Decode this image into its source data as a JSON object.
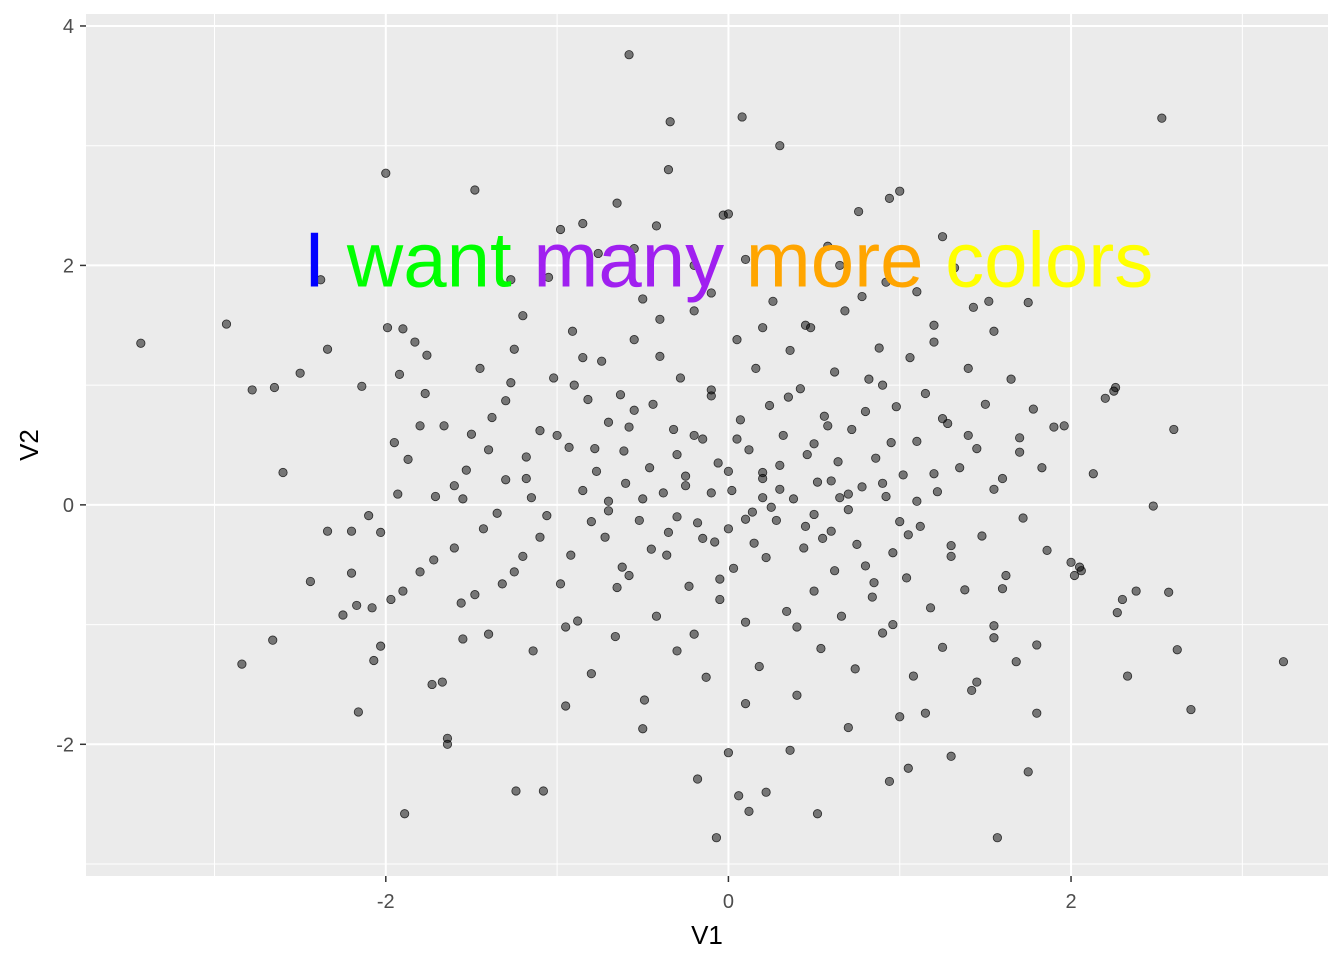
{
  "chart_data": {
    "type": "scatter",
    "title": "",
    "xlabel": "V1",
    "ylabel": "V2",
    "xlim": [
      -3.75,
      3.5
    ],
    "ylim": [
      -3.1,
      4.1
    ],
    "x_ticks": [
      -2,
      0,
      2
    ],
    "x_tick_labels": [
      "-2",
      "0",
      "2"
    ],
    "y_ticks": [
      -2,
      0,
      2,
      4
    ],
    "y_tick_labels": [
      "-2",
      "0",
      "2",
      "4"
    ],
    "grid": true,
    "legend": "none",
    "point_color": "#000000",
    "point_alpha": 0.5,
    "panel_background": "#ebebeb",
    "annotation": {
      "x": 0,
      "y": 2,
      "words": [
        {
          "text": "I",
          "color": "#0000ff"
        },
        {
          "text": "want",
          "color": "#00ff00"
        },
        {
          "text": "many",
          "color": "#a020f0"
        },
        {
          "text": "more",
          "color": "#ffa500"
        },
        {
          "text": "colors",
          "color": "#ffff00"
        }
      ]
    },
    "points": [
      [
        -3.43,
        1.35
      ],
      [
        -2.93,
        1.51
      ],
      [
        -2.84,
        -1.33
      ],
      [
        -2.78,
        0.96
      ],
      [
        -2.65,
        0.98
      ],
      [
        -2.6,
        0.27
      ],
      [
        -2.66,
        -1.13
      ],
      [
        -2.5,
        1.1
      ],
      [
        -2.44,
        -0.64
      ],
      [
        -2.34,
        1.3
      ],
      [
        -2.38,
        1.88
      ],
      [
        -2.34,
        -0.22
      ],
      [
        -2.25,
        -0.92
      ],
      [
        -2.2,
        -0.57
      ],
      [
        -2.17,
        -0.84
      ],
      [
        -2.14,
        0.99
      ],
      [
        -2.16,
        -1.73
      ],
      [
        -2.1,
        -0.09
      ],
      [
        -2.08,
        -0.86
      ],
      [
        -2.07,
        -1.3
      ],
      [
        -2.03,
        -1.18
      ],
      [
        -2.03,
        -0.23
      ],
      [
        -2.0,
        2.77
      ],
      [
        -1.99,
        1.48
      ],
      [
        -1.97,
        -0.79
      ],
      [
        -1.93,
        0.09
      ],
      [
        -1.92,
        1.09
      ],
      [
        -1.9,
        1.47
      ],
      [
        -1.87,
        0.38
      ],
      [
        -1.89,
        -2.58
      ],
      [
        -1.83,
        1.36
      ],
      [
        -1.8,
        0.66
      ],
      [
        -1.8,
        -0.56
      ],
      [
        -1.76,
        1.25
      ],
      [
        -1.73,
        -1.5
      ],
      [
        -1.71,
        0.07
      ],
      [
        -1.67,
        -1.48
      ],
      [
        -1.66,
        0.66
      ],
      [
        -1.6,
        -0.36
      ],
      [
        -1.55,
        0.05
      ],
      [
        -1.53,
        0.29
      ],
      [
        -1.64,
        -1.95
      ],
      [
        -1.64,
        -2.0
      ],
      [
        -1.5,
        0.59
      ],
      [
        -1.48,
        -0.75
      ],
      [
        -1.43,
        -0.2
      ],
      [
        -1.4,
        0.46
      ],
      [
        -1.38,
        0.73
      ],
      [
        -1.32,
        -0.66
      ],
      [
        -1.3,
        0.21
      ],
      [
        -1.27,
        1.02
      ],
      [
        -1.25,
        1.3
      ],
      [
        -1.2,
        -0.43
      ],
      [
        -1.18,
        0.4
      ],
      [
        -1.14,
        -1.22
      ],
      [
        -1.1,
        0.62
      ],
      [
        -1.06,
        -0.09
      ],
      [
        -1.02,
        1.06
      ],
      [
        -0.98,
        -0.66
      ],
      [
        -0.93,
        0.48
      ],
      [
        -0.91,
        1.45
      ],
      [
        -0.88,
        -0.97
      ],
      [
        -0.85,
        0.12
      ],
      [
        -0.82,
        0.88
      ],
      [
        -0.8,
        -1.41
      ],
      [
        -0.77,
        0.28
      ],
      [
        -0.74,
        1.2
      ],
      [
        -0.72,
        -0.27
      ],
      [
        -0.7,
        0.69
      ],
      [
        -0.66,
        -1.1
      ],
      [
        -0.63,
        0.92
      ],
      [
        -0.61,
        0.45
      ],
      [
        -0.58,
        -0.59
      ],
      [
        -0.55,
        1.38
      ],
      [
        -0.52,
        -0.13
      ],
      [
        -0.49,
        -1.63
      ],
      [
        -0.46,
        0.31
      ],
      [
        -0.44,
        0.84
      ],
      [
        -0.42,
        -0.93
      ],
      [
        -0.4,
        1.55
      ],
      [
        -0.38,
        0.1
      ],
      [
        -0.36,
        -0.42
      ],
      [
        -0.34,
        3.2
      ],
      [
        -0.35,
        2.8
      ],
      [
        -0.32,
        0.63
      ],
      [
        -0.3,
        -1.22
      ],
      [
        -0.28,
        1.06
      ],
      [
        -0.25,
        0.24
      ],
      [
        -0.23,
        -0.68
      ],
      [
        -0.2,
        1.62
      ],
      [
        -0.18,
        -0.15
      ],
      [
        -0.15,
        0.55
      ],
      [
        -0.13,
        -1.44
      ],
      [
        -0.1,
        0.96
      ],
      [
        -0.08,
        -0.31
      ],
      [
        -0.06,
        0.35
      ],
      [
        -0.05,
        -0.79
      ],
      [
        -0.03,
        2.42
      ],
      [
        0.0,
        2.43
      ],
      [
        0.02,
        0.12
      ],
      [
        0.03,
        -0.53
      ],
      [
        0.05,
        1.38
      ],
      [
        0.07,
        0.71
      ],
      [
        0.08,
        3.24
      ],
      [
        0.1,
        -0.98
      ],
      [
        0.12,
        0.46
      ],
      [
        0.14,
        -0.06
      ],
      [
        0.16,
        1.14
      ],
      [
        0.18,
        -1.35
      ],
      [
        0.2,
        0.27
      ],
      [
        0.22,
        -0.44
      ],
      [
        0.24,
        0.83
      ],
      [
        0.26,
        1.7
      ],
      [
        0.28,
        -0.13
      ],
      [
        0.3,
        3.0
      ],
      [
        0.32,
        0.58
      ],
      [
        0.34,
        -0.89
      ],
      [
        0.36,
        1.29
      ],
      [
        0.38,
        0.05
      ],
      [
        0.4,
        -1.59
      ],
      [
        0.42,
        0.97
      ],
      [
        0.44,
        -0.36
      ],
      [
        0.46,
        0.42
      ],
      [
        0.48,
        1.48
      ],
      [
        0.5,
        -0.72
      ],
      [
        0.52,
        0.19
      ],
      [
        0.54,
        -1.2
      ],
      [
        0.56,
        0.74
      ],
      [
        0.58,
        2.16
      ],
      [
        0.6,
        -0.22
      ],
      [
        0.62,
        1.11
      ],
      [
        0.64,
        0.36
      ],
      [
        0.66,
        -0.93
      ],
      [
        0.68,
        1.62
      ],
      [
        0.7,
        -0.04
      ],
      [
        0.72,
        0.63
      ],
      [
        0.74,
        -1.37
      ],
      [
        0.76,
        2.45
      ],
      [
        0.78,
        0.15
      ],
      [
        0.8,
        -0.51
      ],
      [
        0.82,
        1.05
      ],
      [
        0.84,
        -0.77
      ],
      [
        0.86,
        0.39
      ],
      [
        0.88,
        1.31
      ],
      [
        0.9,
        -1.07
      ],
      [
        0.92,
        0.07
      ],
      [
        0.94,
        2.56
      ],
      [
        0.96,
        -0.4
      ],
      [
        0.98,
        0.82
      ],
      [
        1.0,
        2.62
      ],
      [
        1.0,
        -1.77
      ],
      [
        1.02,
        0.25
      ],
      [
        1.04,
        -0.61
      ],
      [
        1.06,
        1.23
      ],
      [
        1.08,
        -1.43
      ],
      [
        1.1,
        0.53
      ],
      [
        1.12,
        -0.18
      ],
      [
        1.15,
        0.93
      ],
      [
        1.18,
        -0.86
      ],
      [
        1.2,
        1.36
      ],
      [
        1.22,
        0.11
      ],
      [
        1.25,
        -1.19
      ],
      [
        1.28,
        0.68
      ],
      [
        1.3,
        -0.43
      ],
      [
        1.32,
        1.98
      ],
      [
        1.35,
        0.31
      ],
      [
        1.38,
        -0.71
      ],
      [
        1.4,
        1.14
      ],
      [
        1.42,
        -1.55
      ],
      [
        1.45,
        0.47
      ],
      [
        1.48,
        -0.26
      ],
      [
        1.5,
        0.84
      ],
      [
        1.52,
        1.7
      ],
      [
        1.55,
        -1.01
      ],
      [
        1.57,
        -2.78
      ],
      [
        1.6,
        0.22
      ],
      [
        1.62,
        -0.59
      ],
      [
        1.65,
        1.05
      ],
      [
        1.68,
        -1.31
      ],
      [
        1.7,
        0.56
      ],
      [
        1.72,
        -0.11
      ],
      [
        1.75,
        1.69
      ],
      [
        1.75,
        -2.23
      ],
      [
        1.78,
        0.8
      ],
      [
        1.8,
        -1.17
      ],
      [
        1.83,
        0.31
      ],
      [
        1.86,
        -0.38
      ],
      [
        1.9,
        0.65
      ],
      [
        1.96,
        0.66
      ],
      [
        2.0,
        -0.48
      ],
      [
        2.02,
        -0.59
      ],
      [
        2.06,
        -0.55
      ],
      [
        2.13,
        0.26
      ],
      [
        2.2,
        0.89
      ],
      [
        2.25,
        0.95
      ],
      [
        2.26,
        0.98
      ],
      [
        2.27,
        -0.9
      ],
      [
        2.3,
        -0.79
      ],
      [
        2.33,
        -1.43
      ],
      [
        2.38,
        -0.72
      ],
      [
        2.48,
        -0.01
      ],
      [
        2.53,
        3.23
      ],
      [
        2.57,
        -0.73
      ],
      [
        2.6,
        0.63
      ],
      [
        2.62,
        -1.21
      ],
      [
        2.7,
        -1.71
      ],
      [
        3.24,
        -1.31
      ],
      [
        -0.58,
        3.76
      ],
      [
        -0.18,
        -2.29
      ],
      [
        -0.07,
        -2.78
      ],
      [
        0.0,
        -2.07
      ],
      [
        0.06,
        -2.43
      ],
      [
        0.12,
        -2.56
      ],
      [
        0.22,
        -2.4
      ],
      [
        0.36,
        -2.05
      ],
      [
        0.52,
        -2.58
      ],
      [
        0.94,
        -2.31
      ],
      [
        1.05,
        -2.2
      ],
      [
        1.3,
        -2.1
      ],
      [
        -1.24,
        -2.39
      ],
      [
        -1.08,
        -2.39
      ],
      [
        -1.05,
        1.9
      ],
      [
        -0.85,
        2.35
      ],
      [
        -0.65,
        2.52
      ],
      [
        -0.55,
        2.14
      ],
      [
        -0.42,
        2.33
      ],
      [
        -0.2,
        2.0
      ],
      [
        0.1,
        2.05
      ],
      [
        0.65,
        2.0
      ],
      [
        0.92,
        1.86
      ],
      [
        1.25,
        2.24
      ],
      [
        1.43,
        1.65
      ],
      [
        -1.48,
        2.63
      ],
      [
        -1.27,
        1.88
      ],
      [
        -0.98,
        2.3
      ],
      [
        -0.76,
        2.1
      ],
      [
        -0.5,
        1.72
      ],
      [
        -0.1,
        1.77
      ],
      [
        0.2,
        1.48
      ],
      [
        0.45,
        1.5
      ],
      [
        0.78,
        1.74
      ],
      [
        1.1,
        1.78
      ],
      [
        1.55,
        1.45
      ],
      [
        -1.9,
        -0.72
      ],
      [
        -1.72,
        -0.46
      ],
      [
        -1.56,
        -0.82
      ],
      [
        -1.4,
        -1.08
      ],
      [
        -1.25,
        -0.56
      ],
      [
        -1.1,
        -0.27
      ],
      [
        -0.95,
        -1.68
      ],
      [
        -0.8,
        -0.14
      ],
      [
        -0.65,
        -0.69
      ],
      [
        -0.5,
        -1.87
      ],
      [
        -0.35,
        -0.23
      ],
      [
        -0.2,
        -1.08
      ],
      [
        -0.05,
        -0.62
      ],
      [
        0.1,
        -1.66
      ],
      [
        0.25,
        -0.02
      ],
      [
        0.4,
        -1.02
      ],
      [
        0.55,
        -0.28
      ],
      [
        0.7,
        -1.86
      ],
      [
        0.85,
        -0.65
      ],
      [
        1.0,
        -0.14
      ],
      [
        1.15,
        -1.74
      ],
      [
        1.3,
        -0.34
      ],
      [
        1.45,
        -1.48
      ],
      [
        1.6,
        -0.7
      ],
      [
        1.8,
        -1.74
      ],
      [
        -1.95,
        0.52
      ],
      [
        -1.77,
        0.93
      ],
      [
        -1.6,
        0.16
      ],
      [
        -1.45,
        1.14
      ],
      [
        -1.3,
        0.87
      ],
      [
        -1.15,
        0.06
      ],
      [
        -1.0,
        0.58
      ],
      [
        -0.85,
        1.23
      ],
      [
        -0.7,
        0.03
      ],
      [
        -0.55,
        0.79
      ],
      [
        -0.4,
        1.24
      ],
      [
        -0.25,
        0.16
      ],
      [
        -0.1,
        0.91
      ],
      [
        0.05,
        0.55
      ],
      [
        0.2,
        0.06
      ],
      [
        0.35,
        0.9
      ],
      [
        0.5,
        0.51
      ],
      [
        0.65,
        0.06
      ],
      [
        0.8,
        0.78
      ],
      [
        0.95,
        0.52
      ],
      [
        1.1,
        0.03
      ],
      [
        1.25,
        0.72
      ],
      [
        1.4,
        0.58
      ],
      [
        1.55,
        0.13
      ],
      [
        1.7,
        0.44
      ],
      [
        -1.35,
        -0.07
      ],
      [
        -1.18,
        0.22
      ],
      [
        -0.92,
        -0.42
      ],
      [
        -0.78,
        0.47
      ],
      [
        -0.6,
        0.18
      ],
      [
        -0.45,
        -0.37
      ],
      [
        -0.3,
        0.42
      ],
      [
        -0.15,
        -0.28
      ],
      [
        0.0,
        0.28
      ],
      [
        0.15,
        -0.32
      ],
      [
        0.3,
        0.33
      ],
      [
        0.45,
        -0.18
      ],
      [
        0.6,
        0.2
      ],
      [
        0.75,
        -0.33
      ],
      [
        0.9,
        0.18
      ],
      [
        1.05,
        -0.25
      ],
      [
        1.2,
        0.26
      ],
      [
        -0.3,
        -0.1
      ],
      [
        -0.1,
        0.1
      ],
      [
        0.1,
        -0.12
      ],
      [
        0.3,
        0.13
      ],
      [
        0.5,
        -0.08
      ],
      [
        -0.5,
        0.05
      ],
      [
        0.7,
        0.09
      ],
      [
        -0.7,
        -0.05
      ],
      [
        0.0,
        -0.2
      ],
      [
        0.2,
        0.22
      ],
      [
        -0.2,
        0.58
      ],
      [
        -0.58,
        0.65
      ],
      [
        0.58,
        0.66
      ],
      [
        -0.62,
        -0.52
      ],
      [
        0.62,
        -0.55
      ],
      [
        -1.2,
        1.58
      ],
      [
        1.2,
        1.5
      ],
      [
        -1.55,
        -1.12
      ],
      [
        1.55,
        -1.11
      ],
      [
        -0.9,
        1.0
      ],
      [
        0.9,
        1.0
      ],
      [
        -0.95,
        -1.02
      ],
      [
        0.96,
        -1.0
      ],
      [
        -2.2,
        -0.22
      ],
      [
        2.05,
        -0.52
      ]
    ]
  }
}
